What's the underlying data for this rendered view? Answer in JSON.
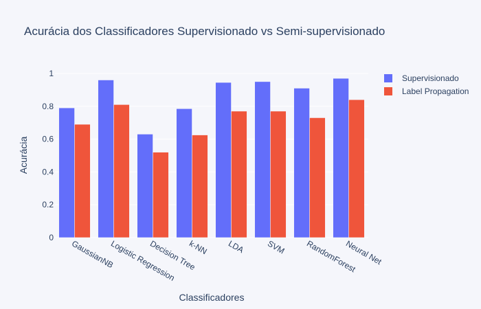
{
  "chart_data": {
    "type": "bar",
    "title": "Acurácia dos Classificadores Supervisionado vs Semi-supervisionado",
    "xlabel": "Classificadores",
    "ylabel": "Acurácia",
    "ylim": [
      0,
      1.05
    ],
    "yticks": [
      0,
      0.2,
      0.4,
      0.6,
      0.8,
      1
    ],
    "ytick_labels": [
      "0",
      "0.2",
      "0.4",
      "0.6",
      "0.8",
      "1"
    ],
    "grid": true,
    "legend_position": "top-right",
    "categories": [
      "GaussianNB",
      "Logistic Regression",
      "Decision Tree",
      "k-NN",
      "LDA",
      "SVM",
      "RandomForest",
      "Neural Net"
    ],
    "series": [
      {
        "name": "Supervisionado",
        "color": "#636efa",
        "values": [
          0.79,
          0.96,
          0.63,
          0.785,
          0.945,
          0.95,
          0.91,
          0.97
        ]
      },
      {
        "name": "Label Propagation",
        "color": "#ef553b",
        "values": [
          0.69,
          0.81,
          0.52,
          0.625,
          0.77,
          0.77,
          0.73,
          0.84
        ]
      }
    ]
  }
}
